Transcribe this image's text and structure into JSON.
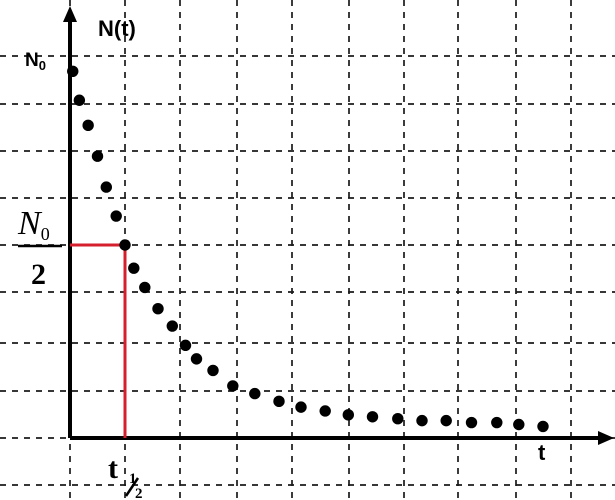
{
  "chart_data": {
    "type": "scatter",
    "title": "",
    "xlabel": "t",
    "ylabel": "N(t)",
    "grid": true,
    "xlim": [
      0,
      9.5
    ],
    "ylim": [
      0,
      2
    ],
    "y_tick_labels": {
      "n0": "N",
      "n0_sub": "0",
      "half_num": "N",
      "half_num_sub": "0",
      "half_den": "2"
    },
    "x_tick_labels": {
      "half_life": "t",
      "half_life_num": "1",
      "half_life_den": "2"
    },
    "half_life_marker": {
      "x": 1,
      "y": 1
    },
    "points": [
      {
        "x": 0.05,
        "y": 1.9
      },
      {
        "x": 0.17,
        "y": 1.75
      },
      {
        "x": 0.33,
        "y": 1.62
      },
      {
        "x": 0.5,
        "y": 1.46
      },
      {
        "x": 0.66,
        "y": 1.3
      },
      {
        "x": 0.84,
        "y": 1.15
      },
      {
        "x": 1.0,
        "y": 1.0
      },
      {
        "x": 1.16,
        "y": 0.88
      },
      {
        "x": 1.36,
        "y": 0.78
      },
      {
        "x": 1.6,
        "y": 0.67
      },
      {
        "x": 1.86,
        "y": 0.58
      },
      {
        "x": 2.1,
        "y": 0.48
      },
      {
        "x": 2.3,
        "y": 0.41
      },
      {
        "x": 2.6,
        "y": 0.35
      },
      {
        "x": 2.96,
        "y": 0.27
      },
      {
        "x": 3.36,
        "y": 0.23
      },
      {
        "x": 3.8,
        "y": 0.19
      },
      {
        "x": 4.2,
        "y": 0.16
      },
      {
        "x": 4.64,
        "y": 0.14
      },
      {
        "x": 5.06,
        "y": 0.12
      },
      {
        "x": 5.5,
        "y": 0.11
      },
      {
        "x": 5.96,
        "y": 0.1
      },
      {
        "x": 6.4,
        "y": 0.09
      },
      {
        "x": 6.84,
        "y": 0.09
      },
      {
        "x": 7.3,
        "y": 0.08
      },
      {
        "x": 7.76,
        "y": 0.08
      },
      {
        "x": 8.16,
        "y": 0.07
      },
      {
        "x": 8.6,
        "y": 0.06
      }
    ],
    "colors": {
      "axis": "#000000",
      "grid": "#1b1b1b",
      "points": "#000000",
      "half_life_marker": "#d51f2e"
    }
  }
}
